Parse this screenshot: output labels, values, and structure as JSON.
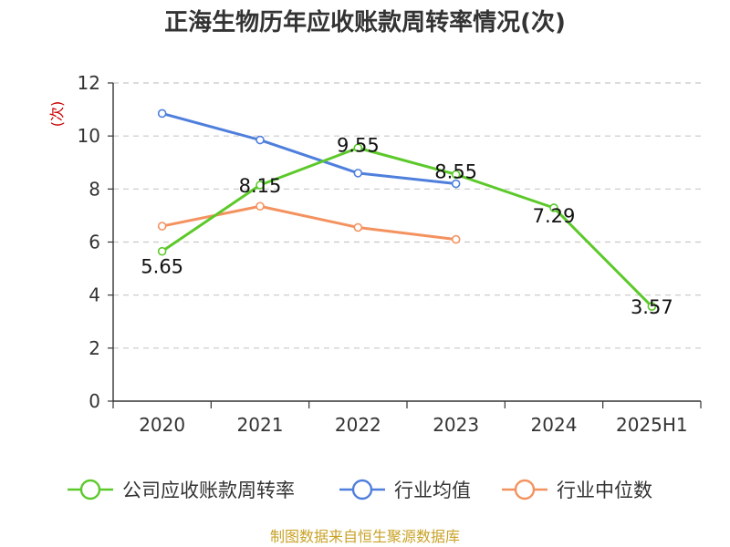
{
  "chart_data": {
    "type": "line",
    "title": "正海生物历年应收账款周转率情况(次)",
    "ylabel": "(次)",
    "xlabel": "",
    "categories": [
      "2020",
      "2021",
      "2022",
      "2023",
      "2024",
      "2025H1"
    ],
    "ylim": [
      0,
      12
    ],
    "yticks": [
      "0",
      "2",
      "4",
      "6",
      "8",
      "10",
      "12"
    ],
    "grid": "horizontal dashed",
    "legend_position": "bottom",
    "series": [
      {
        "name": "公司应收账款周转率",
        "color": "#5cc92a",
        "values": [
          5.65,
          8.15,
          9.55,
          8.55,
          7.29,
          3.57
        ],
        "labels": [
          "5.65",
          "8.15",
          "9.55",
          "8.55",
          "7.29",
          "3.57"
        ]
      },
      {
        "name": "行业均值",
        "color": "#4f7fdc",
        "values": [
          10.85,
          9.85,
          8.6,
          8.2,
          null,
          null
        ]
      },
      {
        "name": "行业中位数",
        "color": "#f4925f",
        "values": [
          6.6,
          7.35,
          6.55,
          6.1,
          null,
          null
        ]
      }
    ],
    "source": "制图数据来自恒生聚源数据库"
  }
}
